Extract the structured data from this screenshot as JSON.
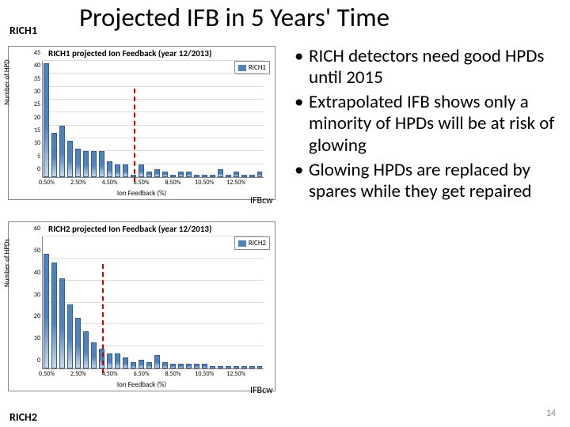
{
  "title": "Projected IFB in 5 Years' Time",
  "label_rich1": "RICH1",
  "label_rich2": "RICH2",
  "ifbcw_label": "IFBcw",
  "page_number": "14",
  "bullets": [
    "RICH detectors need good HPDs until 2015",
    "Extrapolated IFB shows only a minority of HPDs will be at risk of glowing",
    "Glowing HPDs are replaced by spares while they get repaired"
  ],
  "chart1": {
    "type": "bar",
    "title": "RICH1 projected Ion Feedback (year 12/2013)",
    "legend": "RICH1",
    "ylabel": "Number of HPD",
    "xlabel": "Ion Feedback (%)",
    "bar_color": "#4f81bd",
    "border_color": "#385d8a",
    "grid_color": "#dddddd",
    "background_color": "#ffffff",
    "ylim": [
      0,
      45
    ],
    "ytick_step": 5,
    "xticks": [
      "0.50%",
      "2.50%",
      "4.50%",
      "6.50%",
      "8.50%",
      "10.50%",
      "12.50%"
    ],
    "values": [
      44,
      17,
      20,
      14,
      11,
      10,
      10,
      10,
      6,
      5,
      5,
      1,
      5,
      2,
      3,
      2,
      1,
      2,
      2,
      1,
      1,
      1,
      3,
      1,
      2,
      1,
      1,
      2
    ],
    "threshold_index": 11,
    "threshold_color": "#d00000"
  },
  "chart2": {
    "type": "bar",
    "title": "RICH2 projected Ion Feedback (year 12/2013)",
    "legend": "RICH2",
    "ylabel": "Number of HPDs",
    "xlabel": "Ion Feedback (%)",
    "bar_color": "#4f81bd",
    "border_color": "#385d8a",
    "grid_color": "#dddddd",
    "background_color": "#ffffff",
    "ylim": [
      0,
      60
    ],
    "ytick_step": 10,
    "xticks": [
      "0.50%",
      "2.50%",
      "4.50%",
      "6.50%",
      "8.50%",
      "10.50%",
      "12.50%"
    ],
    "values": [
      52,
      48,
      41,
      29,
      23,
      17,
      12,
      9,
      7,
      7,
      5,
      3,
      4,
      3,
      6,
      3,
      2,
      2,
      2,
      2,
      2,
      1,
      1,
      1,
      1,
      1,
      1,
      1
    ],
    "threshold_index": 7,
    "threshold_color": "#d00000"
  }
}
